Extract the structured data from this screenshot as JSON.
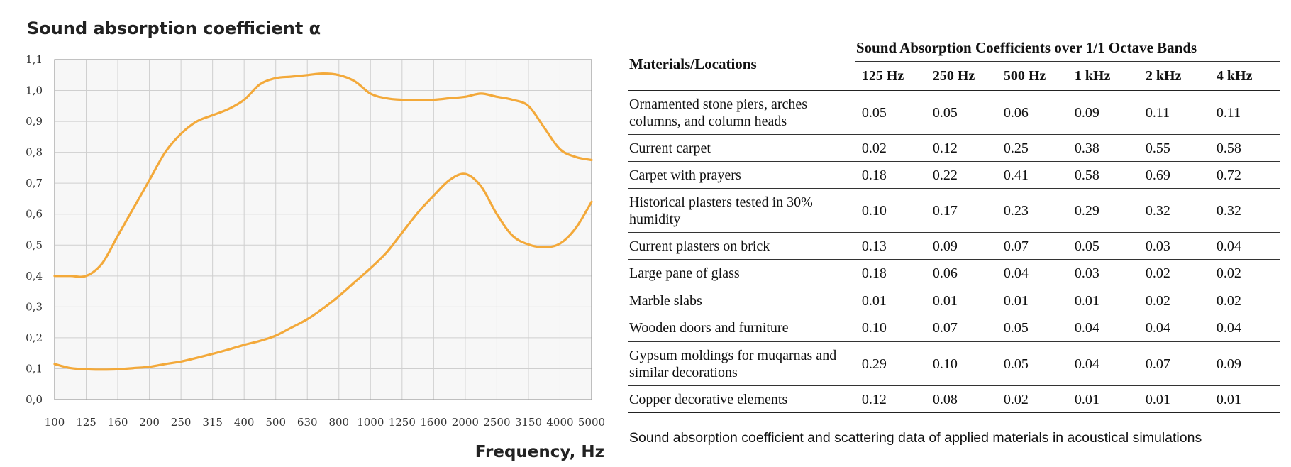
{
  "chart_data": {
    "type": "line",
    "title": "Sound absorption coefficient α",
    "xlabel": "Frequency, Hz",
    "ylabel": "",
    "x_categories": [
      "100",
      "125",
      "160",
      "200",
      "250",
      "315",
      "400",
      "500",
      "630",
      "800",
      "1000",
      "1250",
      "1600",
      "2000",
      "2500",
      "3150",
      "4000",
      "5000"
    ],
    "yticks": [
      "0,0",
      "0,1",
      "0,2",
      "0,3",
      "0,4",
      "0,5",
      "0,6",
      "0,7",
      "0,8",
      "0,9",
      "1,0",
      "1,1"
    ],
    "ylim": [
      0,
      1.1
    ],
    "grid": true,
    "line_color": "#f3a93a",
    "series": [
      {
        "name": "upper curve",
        "x": [
          0,
          0.5,
          1,
          1.5,
          2,
          2.5,
          3,
          3.5,
          4,
          4.5,
          5,
          5.5,
          6,
          6.5,
          7,
          7.5,
          8,
          8.5,
          9,
          9.5,
          10,
          10.5,
          11,
          11.5,
          12,
          12.5,
          13,
          13.5,
          14,
          14.5,
          15,
          15.5,
          16,
          16.5,
          17
        ],
        "y": [
          0.4,
          0.4,
          0.4,
          0.44,
          0.53,
          0.62,
          0.71,
          0.8,
          0.86,
          0.9,
          0.92,
          0.94,
          0.97,
          1.02,
          1.04,
          1.045,
          1.05,
          1.055,
          1.05,
          1.03,
          0.99,
          0.975,
          0.97,
          0.97,
          0.97,
          0.975,
          0.98,
          0.99,
          0.98,
          0.97,
          0.95,
          0.88,
          0.81,
          0.785,
          0.775
        ]
      },
      {
        "name": "lower curve",
        "x": [
          0,
          0.5,
          1,
          1.5,
          2,
          2.5,
          3,
          3.5,
          4,
          4.5,
          5,
          5.5,
          6,
          6.5,
          7,
          7.5,
          8,
          8.5,
          9,
          9.5,
          10,
          10.5,
          11,
          11.5,
          12,
          12.5,
          13,
          13.5,
          14,
          14.5,
          15,
          15.5,
          16,
          16.5,
          17
        ],
        "y": [
          0.115,
          0.102,
          0.098,
          0.097,
          0.098,
          0.102,
          0.106,
          0.115,
          0.123,
          0.135,
          0.148,
          0.162,
          0.177,
          0.19,
          0.207,
          0.233,
          0.26,
          0.295,
          0.335,
          0.38,
          0.425,
          0.475,
          0.54,
          0.605,
          0.66,
          0.71,
          0.73,
          0.69,
          0.6,
          0.53,
          0.502,
          0.493,
          0.505,
          0.555,
          0.64
        ]
      }
    ]
  },
  "table": {
    "material_header": "Materials/Locations",
    "group_header": "Sound Absorption Coefficients over 1/1 Octave Bands",
    "bands": [
      "125 Hz",
      "250 Hz",
      "500 Hz",
      "1 kHz",
      "2 kHz",
      "4 kHz"
    ],
    "rows": [
      {
        "material": "Ornamented stone piers, arches columns, and column heads",
        "values": [
          "0.05",
          "0.05",
          "0.06",
          "0.09",
          "0.11",
          "0.11"
        ]
      },
      {
        "material": "Current carpet",
        "values": [
          "0.02",
          "0.12",
          "0.25",
          "0.38",
          "0.55",
          "0.58"
        ]
      },
      {
        "material": "Carpet with prayers",
        "values": [
          "0.18",
          "0.22",
          "0.41",
          "0.58",
          "0.69",
          "0.72"
        ]
      },
      {
        "material": "Historical plasters tested in 30% humidity",
        "values": [
          "0.10",
          "0.17",
          "0.23",
          "0.29",
          "0.32",
          "0.32"
        ]
      },
      {
        "material": "Current plasters on brick",
        "values": [
          "0.13",
          "0.09",
          "0.07",
          "0.05",
          "0.03",
          "0.04"
        ]
      },
      {
        "material": "Large pane of glass",
        "values": [
          "0.18",
          "0.06",
          "0.04",
          "0.03",
          "0.02",
          "0.02"
        ]
      },
      {
        "material": "Marble slabs",
        "values": [
          "0.01",
          "0.01",
          "0.01",
          "0.01",
          "0.02",
          "0.02"
        ]
      },
      {
        "material": "Wooden doors and furniture",
        "values": [
          "0.10",
          "0.07",
          "0.05",
          "0.04",
          "0.04",
          "0.04"
        ]
      },
      {
        "material": "Gypsum moldings for muqarnas and similar decorations",
        "values": [
          "0.29",
          "0.10",
          "0.05",
          "0.04",
          "0.07",
          "0.09"
        ]
      },
      {
        "material": "Copper decorative elements",
        "values": [
          "0.12",
          "0.08",
          "0.02",
          "0.01",
          "0.01",
          "0.01"
        ]
      }
    ]
  },
  "caption": "Sound absorption coefficient and scattering data of applied materials in acoustical simulations"
}
